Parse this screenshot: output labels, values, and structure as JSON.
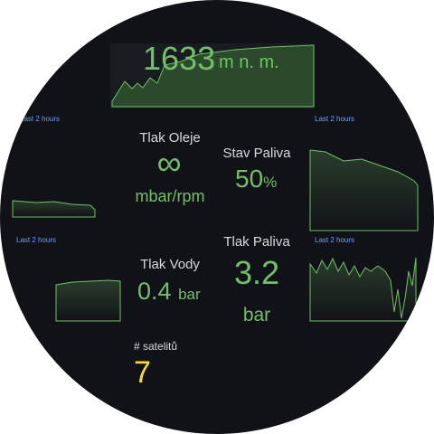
{
  "altitude": {
    "value": 1633,
    "unit": "m n. m."
  },
  "time_labels": [
    "Last 2 hours",
    "Last 2 hours",
    "Last 2 hours",
    "Last 2 hours"
  ],
  "oil_pressure": {
    "title": "Tlak Oleje",
    "value": "∞",
    "unit": "mbar/rpm"
  },
  "fuel_level": {
    "title": "Stav Paliva",
    "value": 50,
    "unit": "%"
  },
  "water_pressure": {
    "title": "Tlak Vody",
    "value": 0.4,
    "unit": "bar"
  },
  "fuel_pressure": {
    "title": "Tlak Paliva",
    "value": 3.2,
    "unit": "bar"
  },
  "satellites": {
    "title": "# satelitů",
    "value": 7
  }
}
